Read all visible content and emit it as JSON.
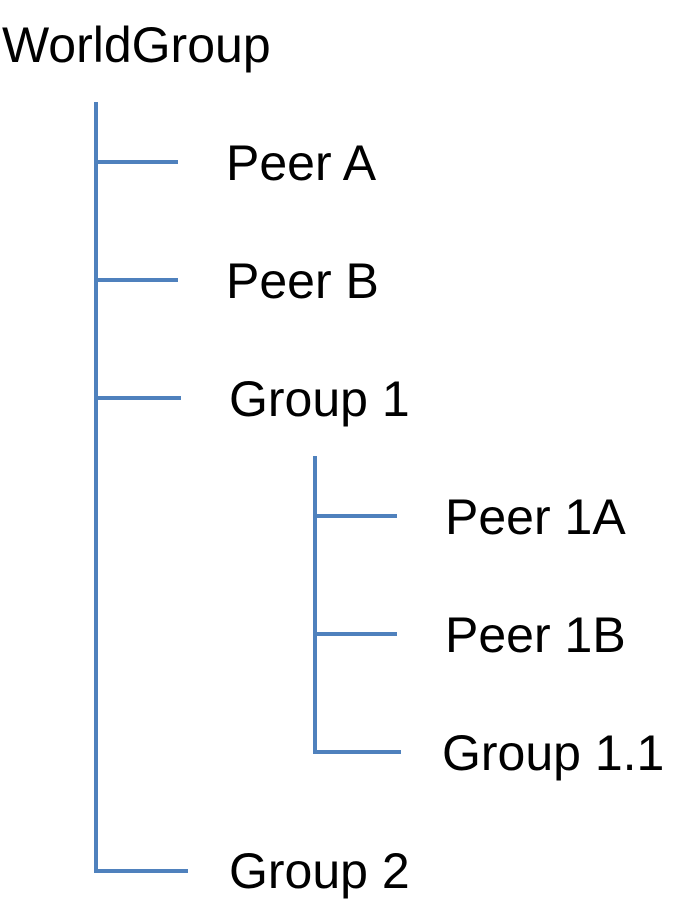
{
  "diagram": {
    "type": "tree",
    "line_color": "#4F81BD",
    "text_color": "#000000",
    "root": {
      "label": "WorldGroup",
      "children": [
        {
          "label": "Peer A"
        },
        {
          "label": "Peer B"
        },
        {
          "label": "Group 1",
          "children": [
            {
              "label": "Peer 1A"
            },
            {
              "label": "Peer 1B"
            },
            {
              "label": "Group 1.1"
            }
          ]
        },
        {
          "label": "Group 2"
        }
      ]
    }
  }
}
